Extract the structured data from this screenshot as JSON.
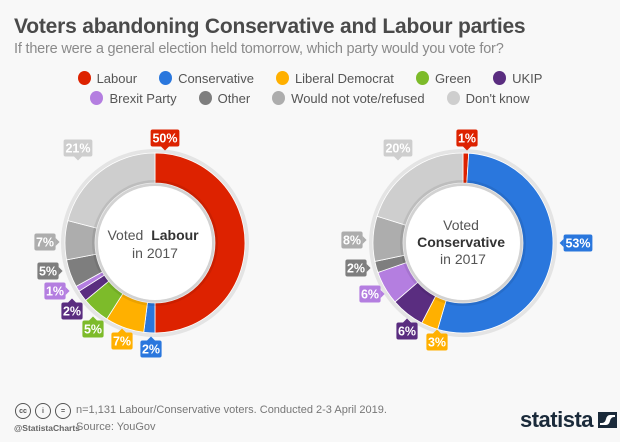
{
  "header": {
    "title": "Voters abandoning Conservative and Labour parties",
    "subtitle": "If there were a general election held tomorrow, which party would you vote for?"
  },
  "legend": {
    "rows": [
      [
        {
          "label": "Labour",
          "color": "#dd2200"
        },
        {
          "label": "Conservative",
          "color": "#2a77dd"
        },
        {
          "label": "Liberal Democrat",
          "color": "#ffb000"
        },
        {
          "label": "Green",
          "color": "#7dbb2a"
        },
        {
          "label": "UKIP",
          "color": "#5a2d80"
        }
      ],
      [
        {
          "label": "Brexit Party",
          "color": "#b47ee0"
        },
        {
          "label": "Other",
          "color": "#7e7e7e"
        },
        {
          "label": "Would not vote/refused",
          "color": "#adadad"
        },
        {
          "label": "Don't know",
          "color": "#cecece"
        }
      ]
    ]
  },
  "chart_data": [
    {
      "type": "pie",
      "variant": "donut",
      "title": "Voted Labour in 2017",
      "center_label": {
        "prefix": "Voted",
        "bold": "Labour",
        "suffix": "in 2017"
      },
      "categories": [
        "Labour",
        "Conservative",
        "Liberal Democrat",
        "Green",
        "UKIP",
        "Brexit Party",
        "Other",
        "Would not vote/refused",
        "Don't know"
      ],
      "values": [
        50,
        2,
        7,
        5,
        2,
        1,
        5,
        7,
        21
      ],
      "unit": "%",
      "colors": [
        "#dd2200",
        "#2a77dd",
        "#ffb000",
        "#7dbb2a",
        "#5a2d80",
        "#b47ee0",
        "#7e7e7e",
        "#adadad",
        "#cecece"
      ],
      "direction": "clockwise from top"
    },
    {
      "type": "pie",
      "variant": "donut",
      "title": "Voted Conservative in 2017",
      "center_label": {
        "prefix": "Voted",
        "bold": "Conservative",
        "suffix": "in 2017"
      },
      "categories": [
        "Labour",
        "Conservative",
        "Liberal Democrat",
        "Green",
        "UKIP",
        "Brexit Party",
        "Other",
        "Would not vote/refused",
        "Don't know"
      ],
      "values": [
        1,
        53,
        3,
        0,
        6,
        6,
        2,
        8,
        20
      ],
      "unit": "%",
      "colors": [
        "#dd2200",
        "#2a77dd",
        "#ffb000",
        "#7dbb2a",
        "#5a2d80",
        "#b47ee0",
        "#7e7e7e",
        "#adadad",
        "#cecece"
      ],
      "direction": "clockwise from top"
    }
  ],
  "footer": {
    "note": "n=1,131 Labour/Conservative voters. Conducted 2-3 April 2019.",
    "source": "Source: YouGov",
    "handle": "@StatistaCharts",
    "license_icons": [
      "cc-icon",
      "by-icon",
      "nd-icon"
    ],
    "license_glyphs": [
      "cc",
      "i",
      "="
    ],
    "brand": "statista"
  }
}
